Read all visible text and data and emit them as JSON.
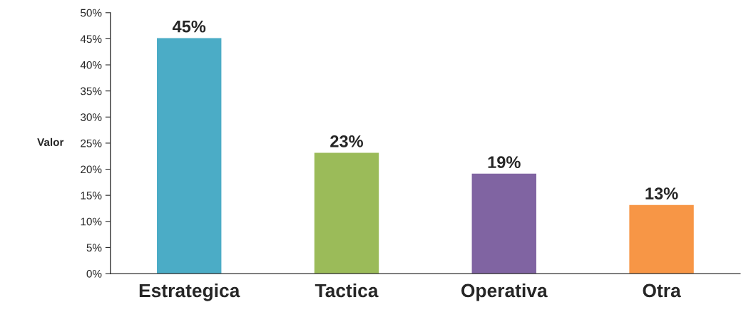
{
  "chart_data": {
    "type": "bar",
    "ylabel": "Valor",
    "categories": [
      "Estrategica",
      "Tactica",
      "Operativa",
      "Otra"
    ],
    "values": [
      45,
      23,
      19,
      13
    ],
    "colors": [
      "#4bacc6",
      "#9bbb59",
      "#8064a2",
      "#f79646"
    ],
    "value_labels": [
      "45%",
      "23%",
      "19%",
      "13%"
    ],
    "ylim": [
      0,
      50
    ],
    "yticks": [
      {
        "value": 0,
        "label": "0%"
      },
      {
        "value": 5,
        "label": "5%"
      },
      {
        "value": 10,
        "label": "10%"
      },
      {
        "value": 15,
        "label": "15%"
      },
      {
        "value": 20,
        "label": "20%"
      },
      {
        "value": 25,
        "label": "25%"
      },
      {
        "value": 30,
        "label": "30%"
      },
      {
        "value": 35,
        "label": "35%"
      },
      {
        "value": 40,
        "label": "40%"
      },
      {
        "value": 45,
        "label": "45%"
      },
      {
        "value": 50,
        "label": "50%"
      }
    ],
    "grid": false,
    "legend": false
  }
}
